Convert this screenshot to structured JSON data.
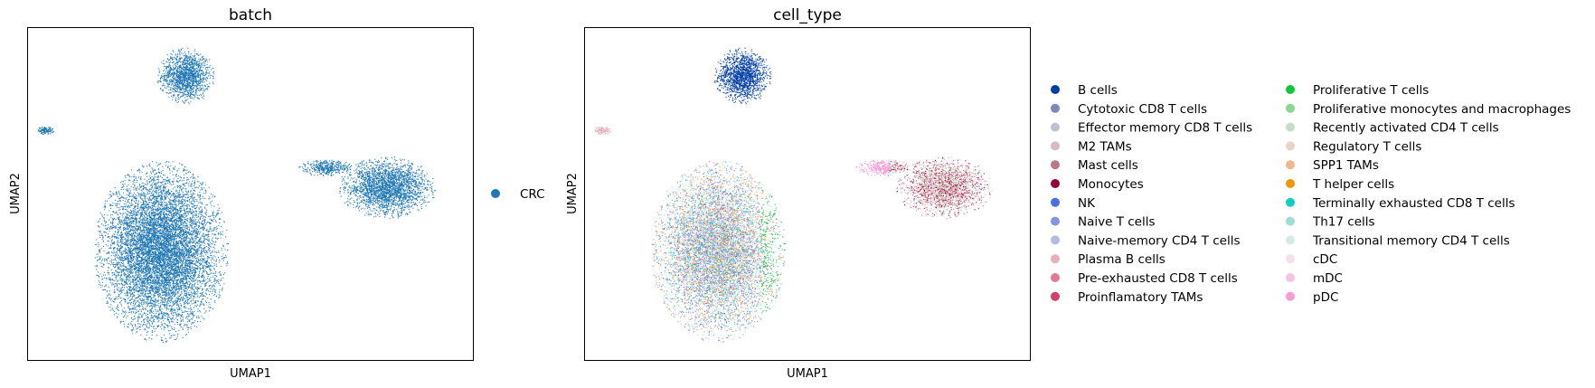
{
  "chart_data": [
    {
      "type": "scatter",
      "title": "batch",
      "xlabel": "UMAP1",
      "ylabel": "UMAP2",
      "grid": false,
      "legend_placement": "right",
      "series": [
        {
          "name": "CRC",
          "color": "#1f77b4"
        }
      ],
      "clusters": [
        {
          "cx": 2.0,
          "cy": 9.1,
          "rx": 0.95,
          "ry": 1.0,
          "n": 1500
        },
        {
          "cx": -2.6,
          "cy": 7.2,
          "rx": 0.3,
          "ry": 0.15,
          "n": 120
        },
        {
          "cx": 1.2,
          "cy": 3.0,
          "rx": 2.2,
          "ry": 3.2,
          "n": 9000
        },
        {
          "cx": 8.6,
          "cy": 5.2,
          "rx": 1.6,
          "ry": 1.1,
          "n": 2500
        },
        {
          "cx": 6.6,
          "cy": 5.9,
          "rx": 0.9,
          "ry": 0.3,
          "n": 400
        }
      ]
    },
    {
      "type": "scatter",
      "title": "cell_type",
      "xlabel": "UMAP1",
      "ylabel": "UMAP2",
      "grid": false,
      "legend_placement": "right",
      "series": [
        {
          "name": "B cells",
          "color": "#023fa5"
        },
        {
          "name": "Cytotoxic CD8 T cells",
          "color": "#7d87b9"
        },
        {
          "name": "Effector memory CD8 T cells",
          "color": "#bec1d4"
        },
        {
          "name": "M2 TAMs",
          "color": "#d6bcc0"
        },
        {
          "name": "Mast cells",
          "color": "#bb7784"
        },
        {
          "name": "Monocytes",
          "color": "#8e063b"
        },
        {
          "name": "NK",
          "color": "#4a6fe3"
        },
        {
          "name": "Naive T cells",
          "color": "#8595e1"
        },
        {
          "name": "Naive-memory CD4 T cells",
          "color": "#b5bbe3"
        },
        {
          "name": "Plasma B cells",
          "color": "#e6afb9"
        },
        {
          "name": "Pre-exhausted CD8 T cells",
          "color": "#e07b91"
        },
        {
          "name": "Proinflamatory TAMs",
          "color": "#d33f6a"
        },
        {
          "name": "Proliferative T cells",
          "color": "#11c638"
        },
        {
          "name": "Proliferative monocytes and macrophages",
          "color": "#8dd593"
        },
        {
          "name": "Recently activated CD4 T cells",
          "color": "#c6dec7"
        },
        {
          "name": "Regulatory T cells",
          "color": "#ead3c6"
        },
        {
          "name": "SPP1 TAMs",
          "color": "#f0b98d"
        },
        {
          "name": "T helper cells",
          "color": "#ef9708"
        },
        {
          "name": "Terminally exhausted CD8 T cells",
          "color": "#0fcfc0"
        },
        {
          "name": "Th17 cells",
          "color": "#9cded6"
        },
        {
          "name": "Transitional memory CD4 T cells",
          "color": "#d5eae7"
        },
        {
          "name": "cDC",
          "color": "#f3e1eb"
        },
        {
          "name": "mDC",
          "color": "#f6c4e1"
        },
        {
          "name": "pDC",
          "color": "#f79cd4"
        }
      ]
    }
  ]
}
